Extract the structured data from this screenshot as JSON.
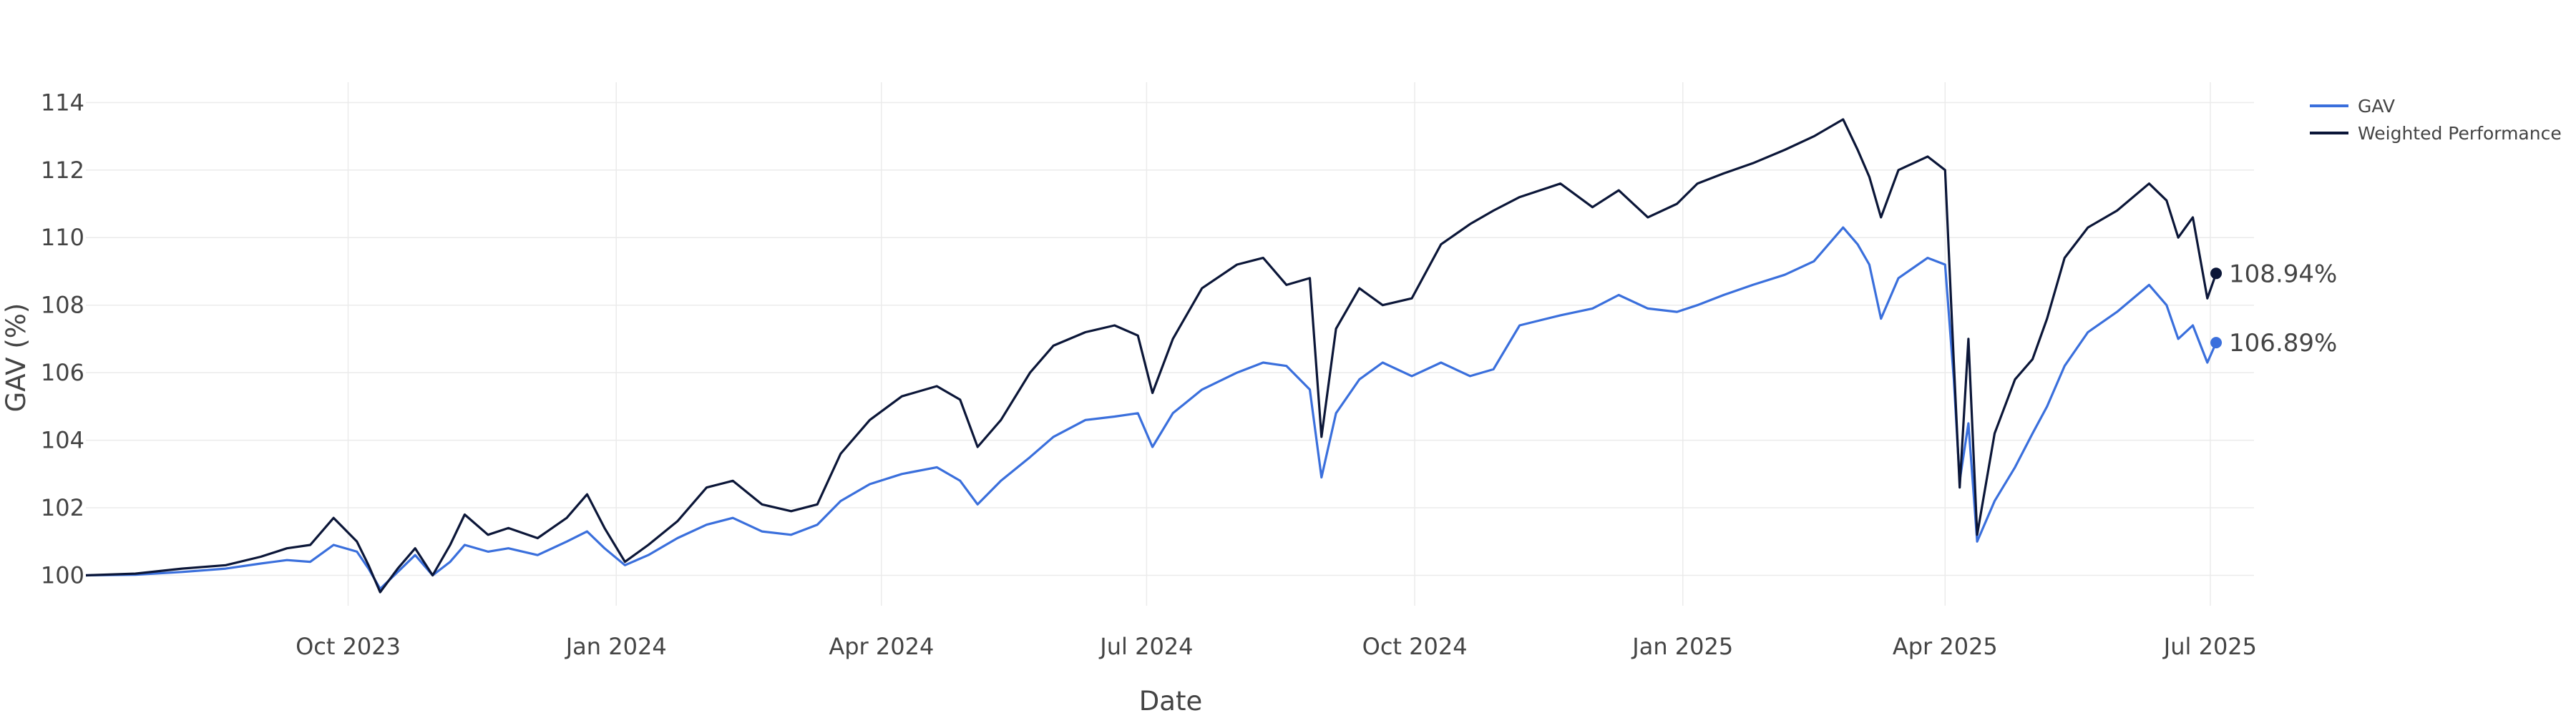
{
  "chart_data": {
    "type": "line",
    "title": "",
    "xlabel": "Date",
    "ylabel": "GAV (%)",
    "xlim": [
      "2023-07-03",
      "2025-07-16"
    ],
    "ylim": [
      99.1,
      114.6
    ],
    "grid": true,
    "legend_position": "top-right",
    "x_ticks": [
      {
        "date": "2023-10-01",
        "label": "Oct 2023"
      },
      {
        "date": "2024-01-01",
        "label": "Jan 2024"
      },
      {
        "date": "2024-04-01",
        "label": "Apr 2024"
      },
      {
        "date": "2024-07-01",
        "label": "Jul 2024"
      },
      {
        "date": "2024-10-01",
        "label": "Oct 2024"
      },
      {
        "date": "2025-01-01",
        "label": "Jan 2025"
      },
      {
        "date": "2025-04-01",
        "label": "Apr 2025"
      },
      {
        "date": "2025-07-01",
        "label": "Jul 2025"
      }
    ],
    "y_ticks": [
      {
        "value": 100,
        "label": "100"
      },
      {
        "value": 102,
        "label": "102"
      },
      {
        "value": 104,
        "label": "104"
      },
      {
        "value": 106,
        "label": "106"
      },
      {
        "value": 108,
        "label": "108"
      },
      {
        "value": 110,
        "label": "110"
      },
      {
        "value": 112,
        "label": "112"
      },
      {
        "value": 114,
        "label": "114"
      }
    ],
    "series": [
      {
        "name": "GAV",
        "color": "#3a6fdc",
        "end_label": "106.89%",
        "points": [
          [
            "2023-07-03",
            100.0
          ],
          [
            "2023-07-20",
            100.02
          ],
          [
            "2023-08-05",
            100.1
          ],
          [
            "2023-08-20",
            100.2
          ],
          [
            "2023-09-01",
            100.35
          ],
          [
            "2023-09-10",
            100.45
          ],
          [
            "2023-09-18",
            100.4
          ],
          [
            "2023-09-26",
            100.9
          ],
          [
            "2023-10-04",
            100.7
          ],
          [
            "2023-10-08",
            100.2
          ],
          [
            "2023-10-12",
            99.6
          ],
          [
            "2023-10-18",
            100.1
          ],
          [
            "2023-10-24",
            100.6
          ],
          [
            "2023-10-30",
            100.0
          ],
          [
            "2023-11-05",
            100.4
          ],
          [
            "2023-11-10",
            100.9
          ],
          [
            "2023-11-18",
            100.7
          ],
          [
            "2023-11-25",
            100.8
          ],
          [
            "2023-12-05",
            100.6
          ],
          [
            "2023-12-15",
            101.0
          ],
          [
            "2023-12-22",
            101.3
          ],
          [
            "2023-12-28",
            100.8
          ],
          [
            "2024-01-04",
            100.3
          ],
          [
            "2024-01-12",
            100.6
          ],
          [
            "2024-01-22",
            101.1
          ],
          [
            "2024-02-01",
            101.5
          ],
          [
            "2024-02-10",
            101.7
          ],
          [
            "2024-02-20",
            101.3
          ],
          [
            "2024-03-01",
            101.2
          ],
          [
            "2024-03-10",
            101.5
          ],
          [
            "2024-03-18",
            102.2
          ],
          [
            "2024-03-28",
            102.7
          ],
          [
            "2024-04-08",
            103.0
          ],
          [
            "2024-04-20",
            103.2
          ],
          [
            "2024-04-28",
            102.8
          ],
          [
            "2024-05-04",
            102.1
          ],
          [
            "2024-05-12",
            102.8
          ],
          [
            "2024-05-22",
            103.5
          ],
          [
            "2024-05-30",
            104.1
          ],
          [
            "2024-06-10",
            104.6
          ],
          [
            "2024-06-20",
            104.7
          ],
          [
            "2024-06-28",
            104.8
          ],
          [
            "2024-07-03",
            103.8
          ],
          [
            "2024-07-10",
            104.8
          ],
          [
            "2024-07-20",
            105.5
          ],
          [
            "2024-08-01",
            106.0
          ],
          [
            "2024-08-10",
            106.3
          ],
          [
            "2024-08-18",
            106.2
          ],
          [
            "2024-08-26",
            105.5
          ],
          [
            "2024-08-30",
            102.9
          ],
          [
            "2024-09-04",
            104.8
          ],
          [
            "2024-09-12",
            105.8
          ],
          [
            "2024-09-20",
            106.3
          ],
          [
            "2024-09-30",
            105.9
          ],
          [
            "2024-10-10",
            106.3
          ],
          [
            "2024-10-20",
            105.9
          ],
          [
            "2024-10-28",
            106.1
          ],
          [
            "2024-11-06",
            107.4
          ],
          [
            "2024-11-20",
            107.7
          ],
          [
            "2024-12-01",
            107.9
          ],
          [
            "2024-12-10",
            108.3
          ],
          [
            "2024-12-20",
            107.9
          ],
          [
            "2024-12-30",
            107.8
          ],
          [
            "2025-01-06",
            108.0
          ],
          [
            "2025-01-15",
            108.3
          ],
          [
            "2025-01-25",
            108.6
          ],
          [
            "2025-02-05",
            108.9
          ],
          [
            "2025-02-15",
            109.3
          ],
          [
            "2025-02-25",
            110.3
          ],
          [
            "2025-03-02",
            109.8
          ],
          [
            "2025-03-06",
            109.2
          ],
          [
            "2025-03-10",
            107.6
          ],
          [
            "2025-03-16",
            108.8
          ],
          [
            "2025-03-26",
            109.4
          ],
          [
            "2025-04-01",
            109.2
          ],
          [
            "2025-04-04",
            105.8
          ],
          [
            "2025-04-06",
            102.8
          ],
          [
            "2025-04-09",
            104.5
          ],
          [
            "2025-04-12",
            101.0
          ],
          [
            "2025-04-18",
            102.2
          ],
          [
            "2025-04-25",
            103.2
          ],
          [
            "2025-05-01",
            104.2
          ],
          [
            "2025-05-06",
            105.0
          ],
          [
            "2025-05-12",
            106.2
          ],
          [
            "2025-05-20",
            107.2
          ],
          [
            "2025-05-30",
            107.8
          ],
          [
            "2025-06-10",
            108.6
          ],
          [
            "2025-06-16",
            108.0
          ],
          [
            "2025-06-20",
            107.0
          ],
          [
            "2025-06-25",
            107.4
          ],
          [
            "2025-06-30",
            106.3
          ],
          [
            "2025-07-03",
            106.89
          ]
        ]
      },
      {
        "name": "Weighted Performance",
        "color": "#0b1638",
        "end_label": "108.94%",
        "points": [
          [
            "2023-07-03",
            100.0
          ],
          [
            "2023-07-20",
            100.05
          ],
          [
            "2023-08-05",
            100.2
          ],
          [
            "2023-08-20",
            100.3
          ],
          [
            "2023-09-01",
            100.55
          ],
          [
            "2023-09-10",
            100.8
          ],
          [
            "2023-09-18",
            100.9
          ],
          [
            "2023-09-26",
            101.7
          ],
          [
            "2023-10-04",
            101.0
          ],
          [
            "2023-10-08",
            100.3
          ],
          [
            "2023-10-12",
            99.5
          ],
          [
            "2023-10-18",
            100.2
          ],
          [
            "2023-10-24",
            100.8
          ],
          [
            "2023-10-30",
            100.0
          ],
          [
            "2023-11-05",
            100.9
          ],
          [
            "2023-11-10",
            101.8
          ],
          [
            "2023-11-18",
            101.2
          ],
          [
            "2023-11-25",
            101.4
          ],
          [
            "2023-12-05",
            101.1
          ],
          [
            "2023-12-15",
            101.7
          ],
          [
            "2023-12-22",
            102.4
          ],
          [
            "2023-12-28",
            101.4
          ],
          [
            "2024-01-04",
            100.4
          ],
          [
            "2024-01-12",
            100.9
          ],
          [
            "2024-01-22",
            101.6
          ],
          [
            "2024-02-01",
            102.6
          ],
          [
            "2024-02-10",
            102.8
          ],
          [
            "2024-02-20",
            102.1
          ],
          [
            "2024-03-01",
            101.9
          ],
          [
            "2024-03-10",
            102.1
          ],
          [
            "2024-03-18",
            103.6
          ],
          [
            "2024-03-28",
            104.6
          ],
          [
            "2024-04-08",
            105.3
          ],
          [
            "2024-04-20",
            105.6
          ],
          [
            "2024-04-28",
            105.2
          ],
          [
            "2024-05-04",
            103.8
          ],
          [
            "2024-05-12",
            104.6
          ],
          [
            "2024-05-22",
            106.0
          ],
          [
            "2024-05-30",
            106.8
          ],
          [
            "2024-06-10",
            107.2
          ],
          [
            "2024-06-20",
            107.4
          ],
          [
            "2024-06-28",
            107.1
          ],
          [
            "2024-07-03",
            105.4
          ],
          [
            "2024-07-10",
            107.0
          ],
          [
            "2024-07-20",
            108.5
          ],
          [
            "2024-08-01",
            109.2
          ],
          [
            "2024-08-10",
            109.4
          ],
          [
            "2024-08-18",
            108.6
          ],
          [
            "2024-08-26",
            108.8
          ],
          [
            "2024-08-30",
            104.1
          ],
          [
            "2024-09-04",
            107.3
          ],
          [
            "2024-09-12",
            108.5
          ],
          [
            "2024-09-20",
            108.0
          ],
          [
            "2024-09-30",
            108.2
          ],
          [
            "2024-10-10",
            109.8
          ],
          [
            "2024-10-20",
            110.4
          ],
          [
            "2024-10-28",
            110.8
          ],
          [
            "2024-11-06",
            111.2
          ],
          [
            "2024-11-20",
            111.6
          ],
          [
            "2024-12-01",
            110.9
          ],
          [
            "2024-12-10",
            111.4
          ],
          [
            "2024-12-20",
            110.6
          ],
          [
            "2024-12-30",
            111.0
          ],
          [
            "2025-01-06",
            111.6
          ],
          [
            "2025-01-15",
            111.9
          ],
          [
            "2025-01-25",
            112.2
          ],
          [
            "2025-02-05",
            112.6
          ],
          [
            "2025-02-15",
            113.0
          ],
          [
            "2025-02-25",
            113.5
          ],
          [
            "2025-03-02",
            112.6
          ],
          [
            "2025-03-06",
            111.8
          ],
          [
            "2025-03-10",
            110.6
          ],
          [
            "2025-03-16",
            112.0
          ],
          [
            "2025-03-26",
            112.4
          ],
          [
            "2025-04-01",
            112.0
          ],
          [
            "2025-04-04",
            106.3
          ],
          [
            "2025-04-06",
            102.6
          ],
          [
            "2025-04-09",
            107.0
          ],
          [
            "2025-04-12",
            101.2
          ],
          [
            "2025-04-18",
            104.2
          ],
          [
            "2025-04-25",
            105.8
          ],
          [
            "2025-05-01",
            106.4
          ],
          [
            "2025-05-06",
            107.6
          ],
          [
            "2025-05-12",
            109.4
          ],
          [
            "2025-05-20",
            110.3
          ],
          [
            "2025-05-30",
            110.8
          ],
          [
            "2025-06-10",
            111.6
          ],
          [
            "2025-06-16",
            111.1
          ],
          [
            "2025-06-20",
            110.0
          ],
          [
            "2025-06-25",
            110.6
          ],
          [
            "2025-06-30",
            108.2
          ],
          [
            "2025-07-03",
            108.94
          ]
        ]
      }
    ]
  }
}
